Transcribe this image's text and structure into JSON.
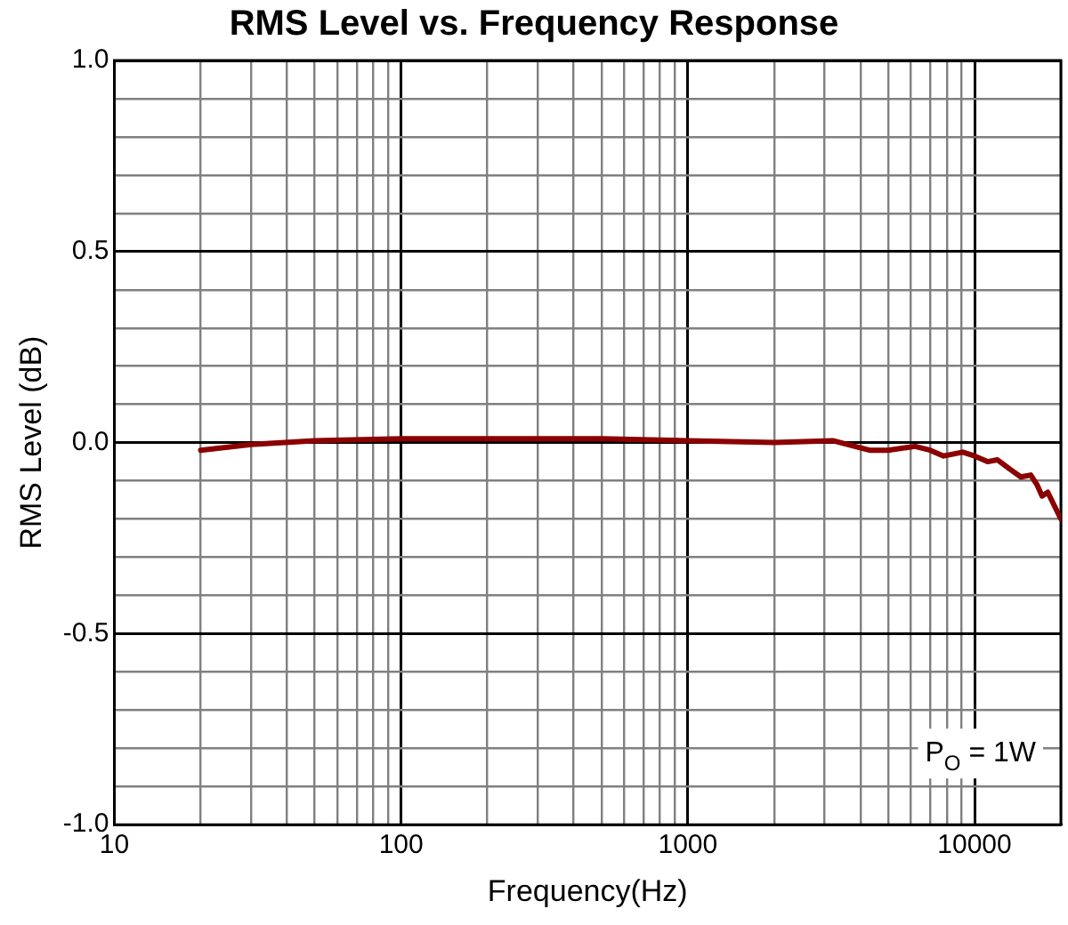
{
  "chart_data": {
    "type": "line",
    "title": "RMS Level vs. Frequency Response",
    "xlabel": "Frequency(Hz)",
    "ylabel": "RMS Level (dB)",
    "x": [
      20,
      30,
      50,
      100,
      200,
      500,
      1000,
      2000,
      3200,
      4300,
      5000,
      6200,
      7000,
      7800,
      9100,
      10000,
      11100,
      12000,
      13300,
      14500,
      15700,
      16500,
      17200,
      18000,
      20000
    ],
    "series": [
      {
        "color": "#8b0000",
        "values": [
          -0.02,
          -0.005,
          0.005,
          0.01,
          0.01,
          0.01,
          0.005,
          0.0,
          0.005,
          -0.02,
          -0.02,
          -0.01,
          -0.02,
          -0.035,
          -0.025,
          -0.035,
          -0.05,
          -0.045,
          -0.07,
          -0.09,
          -0.085,
          -0.11,
          -0.14,
          -0.13,
          -0.2
        ]
      }
    ],
    "log": "x",
    "xlim": [
      10,
      20000
    ],
    "xticks": [
      10,
      {
        "value": 20,
        "label": null
      },
      {
        "value": 30,
        "label": null
      },
      {
        "value": 40,
        "label": null
      },
      {
        "value": 50,
        "label": null
      },
      {
        "value": 60,
        "label": null
      },
      {
        "value": 70,
        "label": null
      },
      {
        "value": 80,
        "label": null
      },
      {
        "value": 90,
        "label": null
      },
      100,
      {
        "value": 200,
        "label": null
      },
      {
        "value": 300,
        "label": null
      },
      {
        "value": 400,
        "label": null
      },
      {
        "value": 500,
        "label": null
      },
      {
        "value": 600,
        "label": null
      },
      {
        "value": 700,
        "label": null
      },
      {
        "value": 800,
        "label": null
      },
      {
        "value": 900,
        "label": null
      },
      1000,
      {
        "value": 2000,
        "label": null
      },
      {
        "value": 3000,
        "label": null
      },
      {
        "value": 4000,
        "label": null
      },
      {
        "value": 5000,
        "label": null
      },
      {
        "value": 6000,
        "label": null
      },
      {
        "value": 7000,
        "label": null
      },
      {
        "value": 8000,
        "label": null
      },
      {
        "value": 9000,
        "label": null
      },
      10000,
      {
        "value": 20000,
        "label": null
      }
    ],
    "ylim": [
      -1,
      1
    ],
    "yticks": [
      {
        "value": -1,
        "label": "-1.0"
      },
      {
        "value": -0.9,
        "label": null
      },
      {
        "value": -0.8,
        "label": null
      },
      {
        "value": -0.7,
        "label": null
      },
      {
        "value": -0.6,
        "label": null
      },
      {
        "value": -0.5,
        "label": "-0.5"
      },
      {
        "value": -0.4,
        "label": null
      },
      {
        "value": -0.3,
        "label": null
      },
      {
        "value": -0.2,
        "label": null
      },
      {
        "value": -0.1,
        "label": null
      },
      {
        "value": 0,
        "label": "0.0"
      },
      {
        "value": 0.1,
        "label": null
      },
      {
        "value": 0.2,
        "label": null
      },
      {
        "value": 0.3,
        "label": null
      },
      {
        "value": 0.4,
        "label": null
      },
      {
        "value": 0.5,
        "label": "0.5"
      },
      {
        "value": 0.6,
        "label": null
      },
      {
        "value": 0.7,
        "label": null
      },
      {
        "value": 0.8,
        "label": null
      },
      {
        "value": 0.9,
        "label": null
      },
      {
        "value": 1,
        "label": "1.0"
      }
    ],
    "grid": true,
    "legend": false,
    "marker": "none",
    "line_style": "solid",
    "annotations": [
      "P$_{O}$ = 1W"
    ]
  }
}
